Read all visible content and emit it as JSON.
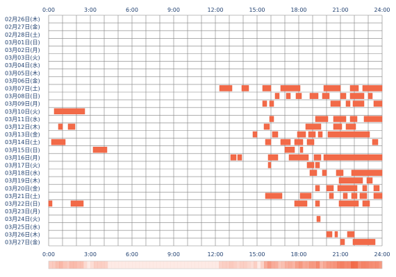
{
  "chart_data": {
    "type": "heatmap",
    "title": "",
    "xlabel": "",
    "ylabel": "",
    "x_ticks": [
      "0:00",
      "3:00",
      "6:00",
      "9:00",
      "12:00",
      "15:00",
      "18:00",
      "21:00",
      "24:00"
    ],
    "x_range_hours": [
      0,
      24
    ],
    "grid": true,
    "days": [
      {
        "label": "02月26日(木)",
        "spans": []
      },
      {
        "label": "02月27日(金)",
        "spans": []
      },
      {
        "label": "02月28日(土)",
        "spans": []
      },
      {
        "label": "03月01日(日)",
        "spans": []
      },
      {
        "label": "03月02日(月)",
        "spans": []
      },
      {
        "label": "03月03日(火)",
        "spans": []
      },
      {
        "label": "03月04日(水)",
        "spans": []
      },
      {
        "label": "03月05日(木)",
        "spans": []
      },
      {
        "label": "03月06日(金)",
        "spans": []
      },
      {
        "label": "03月07日(土)",
        "spans": [
          [
            12.3,
            13.2
          ],
          [
            13.9,
            14.4
          ],
          [
            15.4,
            16.0
          ],
          [
            16.7,
            18.1
          ],
          [
            19.8,
            21.0
          ],
          [
            21.7,
            22.3
          ],
          [
            22.6,
            24.0
          ]
        ]
      },
      {
        "label": "03月08日(日)",
        "spans": [
          [
            16.3,
            16.6
          ],
          [
            17.1,
            17.4
          ],
          [
            17.8,
            18.2
          ],
          [
            18.8,
            19.4
          ],
          [
            19.7,
            20.2
          ],
          [
            21.0,
            21.4
          ],
          [
            21.7,
            22.7
          ],
          [
            23.0,
            23.3
          ]
        ]
      },
      {
        "label": "03月09日(月)",
        "spans": [
          [
            15.4,
            15.7
          ],
          [
            15.9,
            16.2
          ],
          [
            20.3,
            21.0
          ],
          [
            21.4,
            21.7
          ],
          [
            21.9,
            22.7
          ],
          [
            23.4,
            24.0
          ]
        ]
      },
      {
        "label": "03月10日(火)",
        "spans": [
          [
            0.4,
            2.6
          ]
        ]
      },
      {
        "label": "03月11日(水)",
        "spans": [
          [
            15.9,
            16.2
          ],
          [
            19.2,
            20.1
          ],
          [
            20.5,
            21.4
          ],
          [
            21.7,
            22.2
          ],
          [
            22.7,
            24.0
          ]
        ]
      },
      {
        "label": "03月12日(木)",
        "spans": [
          [
            0.7,
            1.0
          ],
          [
            1.4,
            1.9
          ],
          [
            15.5,
            15.9
          ],
          [
            18.5,
            19.6
          ],
          [
            20.5,
            21.1
          ],
          [
            21.4,
            22.1
          ]
        ]
      },
      {
        "label": "03月13日(金)",
        "spans": [
          [
            14.7,
            15.0
          ],
          [
            16.1,
            16.5
          ],
          [
            17.9,
            18.5
          ],
          [
            18.7,
            19.2
          ],
          [
            19.4,
            19.7
          ],
          [
            20.1,
            23.1
          ]
        ]
      },
      {
        "label": "03月14日(土)",
        "spans": [
          [
            0.2,
            1.2
          ],
          [
            15.6,
            16.0
          ],
          [
            16.7,
            17.4
          ],
          [
            17.7,
            18.3
          ],
          [
            18.6,
            19.1
          ],
          [
            23.3,
            23.7
          ]
        ]
      },
      {
        "label": "03月15日(日)",
        "spans": [
          [
            3.2,
            4.2
          ],
          [
            17.0,
            17.7
          ],
          [
            18.1,
            18.3
          ]
        ]
      },
      {
        "label": "03月16日(月)",
        "spans": [
          [
            13.1,
            13.5
          ],
          [
            13.6,
            13.9
          ],
          [
            15.8,
            16.5
          ],
          [
            17.3,
            18.7
          ],
          [
            19.1,
            19.6
          ],
          [
            19.8,
            24.0
          ]
        ]
      },
      {
        "label": "03月17日(火)",
        "spans": [
          [
            15.8,
            16.0
          ],
          [
            18.6,
            19.1
          ],
          [
            19.2,
            19.5
          ]
        ]
      },
      {
        "label": "03月18日(水)",
        "spans": [
          [
            18.8,
            19.3
          ],
          [
            19.7,
            20.0
          ],
          [
            20.7,
            21.2
          ],
          [
            21.8,
            24.0
          ]
        ]
      },
      {
        "label": "03月19日(木)",
        "spans": [
          [
            20.9,
            22.6
          ],
          [
            22.9,
            23.3
          ]
        ]
      },
      {
        "label": "03月20日(金)",
        "spans": [
          [
            19.2,
            19.5
          ],
          [
            20.0,
            20.5
          ],
          [
            20.8,
            22.2
          ],
          [
            22.6,
            22.9
          ],
          [
            23.4,
            23.8
          ]
        ]
      },
      {
        "label": "03月21日(土)",
        "spans": [
          [
            15.6,
            16.8
          ],
          [
            18.1,
            18.9
          ],
          [
            20.2,
            20.5
          ],
          [
            21.2,
            21.5
          ],
          [
            21.8,
            22.2
          ],
          [
            22.4,
            22.9
          ],
          [
            23.4,
            24.0
          ]
        ]
      },
      {
        "label": "03月22日(日)",
        "spans": [
          [
            0.0,
            0.25
          ],
          [
            1.6,
            2.5
          ],
          [
            17.7,
            18.6
          ],
          [
            19.2,
            19.5
          ],
          [
            20.9,
            22.3
          ],
          [
            22.6,
            23.1
          ]
        ]
      },
      {
        "label": "03月23日(月)",
        "spans": []
      },
      {
        "label": "03月24日(火)",
        "spans": [
          [
            19.3,
            19.55
          ]
        ]
      },
      {
        "label": "03月25日(水)",
        "spans": []
      },
      {
        "label": "03月26日(木)",
        "spans": [
          [
            20.0,
            20.4
          ],
          [
            20.6,
            20.8
          ],
          [
            21.5,
            22.0
          ]
        ]
      },
      {
        "label": "03月27日(金)",
        "spans": [
          [
            21.0,
            21.3
          ],
          [
            21.9,
            23.5
          ]
        ]
      }
    ],
    "colors": {
      "grid": "#7f7f7f",
      "bar": "#f26a48",
      "bar_dark": "#e85a3c",
      "tick_text": "#1f3f6f"
    }
  }
}
